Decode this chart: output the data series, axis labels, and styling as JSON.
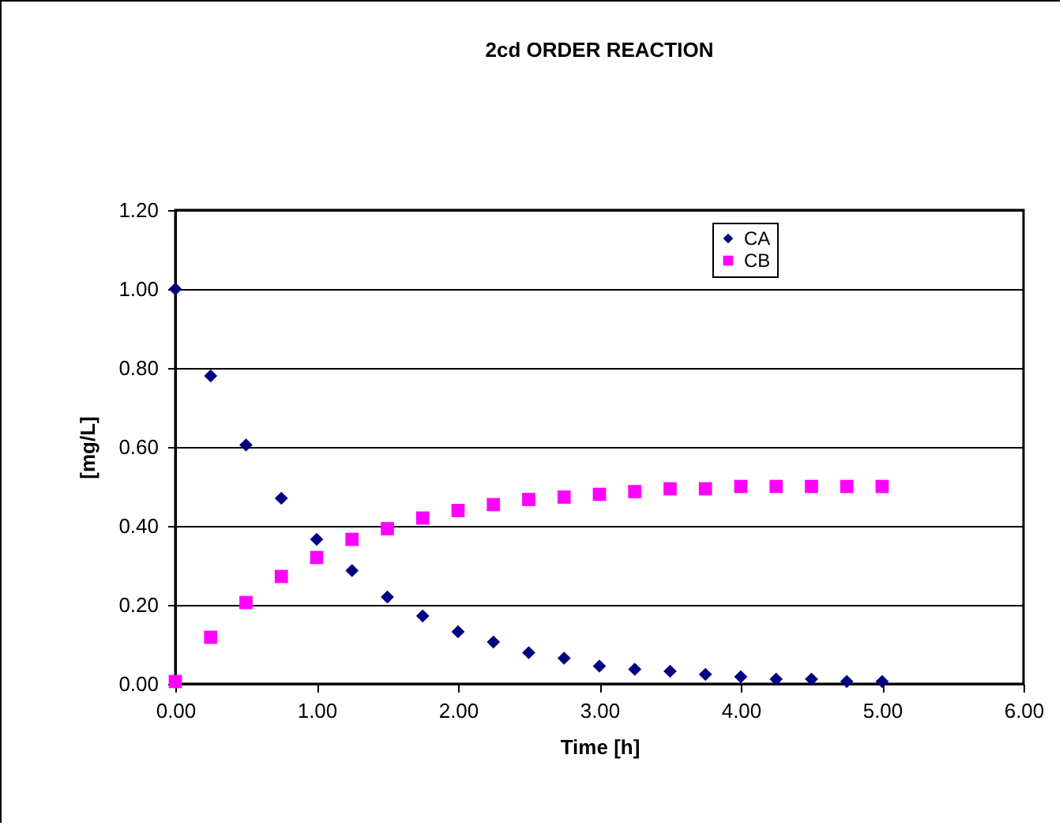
{
  "chart_data": {
    "type": "scatter",
    "title": "2cd ORDER REACTION",
    "xlabel": "Time [h]",
    "ylabel": "[mg/L]",
    "x": [
      0,
      0.25,
      0.5,
      0.75,
      1,
      1.25,
      1.5,
      1.75,
      2,
      2.25,
      2.5,
      2.75,
      3,
      3.25,
      3.5,
      3.75,
      4,
      4.25,
      4.5,
      4.75,
      5
    ],
    "series": [
      {
        "name": "CA",
        "color": "#000080",
        "marker": "diamond",
        "values": [
          1.0,
          0.78,
          0.605,
          0.47,
          0.366,
          0.287,
          0.22,
          0.172,
          0.132,
          0.106,
          0.079,
          0.065,
          0.045,
          0.037,
          0.032,
          0.024,
          0.018,
          0.012,
          0.012,
          0.006,
          0.006
        ]
      },
      {
        "name": "CB",
        "color": "#ff00ff",
        "marker": "square",
        "values": [
          0.006,
          0.118,
          0.206,
          0.272,
          0.32,
          0.366,
          0.393,
          0.42,
          0.439,
          0.454,
          0.467,
          0.473,
          0.48,
          0.487,
          0.494,
          0.494,
          0.5,
          0.5,
          0.5,
          0.5,
          0.5
        ]
      }
    ],
    "xlim": [
      0,
      6
    ],
    "xticks": [
      {
        "value": 0,
        "label": "0.00"
      },
      {
        "value": 1,
        "label": "1.00"
      },
      {
        "value": 2,
        "label": "2.00"
      },
      {
        "value": 3,
        "label": "3.00"
      },
      {
        "value": 4,
        "label": "4.00"
      },
      {
        "value": 5,
        "label": "5.00"
      },
      {
        "value": 6,
        "label": "6.00"
      }
    ],
    "ylim": [
      0,
      1.2
    ],
    "yticks": [
      {
        "value": 0,
        "label": "0.00"
      },
      {
        "value": 0.2,
        "label": "0.20"
      },
      {
        "value": 0.4,
        "label": "0.40"
      },
      {
        "value": 0.6,
        "label": "0.60"
      },
      {
        "value": 0.8,
        "label": "0.80"
      },
      {
        "value": 1,
        "label": "1.00"
      },
      {
        "value": 1.2,
        "label": "1.20"
      }
    ],
    "grid": "y",
    "legend": "top right"
  }
}
